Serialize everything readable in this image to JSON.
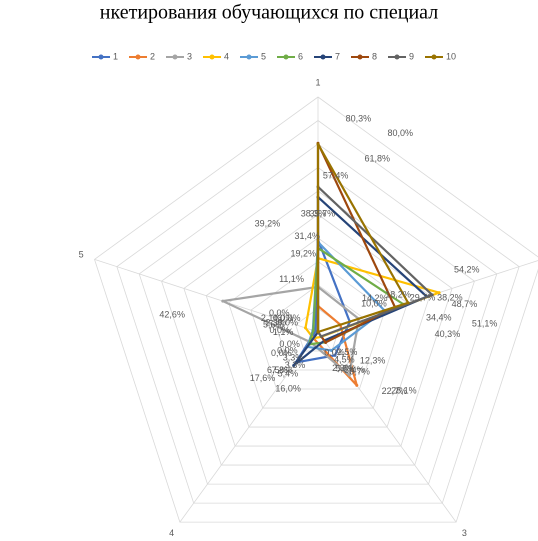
{
  "chart_data": {
    "type": "radar",
    "title": "нкетирования обучающихся по специал",
    "categories": [
      "1",
      null,
      "3",
      "4",
      "5"
    ],
    "rlim": [
      0,
      100
    ],
    "rticks": [
      10,
      20,
      30,
      40,
      50,
      60,
      70,
      80,
      90,
      100
    ],
    "grid": true,
    "legend": "top",
    "series": [
      {
        "name": "1",
        "color": "#4472c4",
        "values": [
          39.2,
          14.2,
          12.3,
          16.0,
          1.1
        ],
        "value_labels": [
          "39,2%",
          "14,2%",
          "12,3%",
          "16,0%",
          "1,1%"
        ]
      },
      {
        "name": "2",
        "color": "#ed7d31",
        "values": [
          11.1,
          10.0,
          28.1,
          3.3,
          0.0
        ],
        "value_labels": [
          "11,1%",
          "10,0%",
          "28,1%",
          "3,3%",
          "0,0%"
        ]
      },
      {
        "name": "3",
        "color": "#a5a5a5",
        "values": [
          19.2,
          18.2,
          22.7,
          5.4,
          42.6
        ],
        "value_labels": [
          "19,2%",
          "18,2%",
          "22,7%",
          "5,4%",
          "42,6%"
        ]
      },
      {
        "name": "4",
        "color": "#ffc000",
        "values": [
          31.4,
          54.2,
          2.5,
          3.3,
          5.6
        ],
        "value_labels": [
          "31,4%",
          "54,2%",
          "2,5%",
          "3,3%",
          "5,6%"
        ]
      },
      {
        "name": "5",
        "color": "#5b9bd5",
        "values": [
          38.3,
          29.7,
          9.7,
          7.8,
          2.3
        ],
        "value_labels": [
          "38,3%",
          "29,7%",
          "9,7%",
          "7,8%",
          "2,3%"
        ]
      },
      {
        "name": "6",
        "color": "#70ad47",
        "values": [
          35.7,
          38.2,
          5.4,
          6.5,
          2.1
        ],
        "value_labels": [
          "35,7%",
          "38,2%",
          "5,4%",
          "6,5%",
          "2,1%"
        ]
      },
      {
        "name": "7",
        "color": "#264478",
        "values": [
          57.4,
          48.7,
          4.5,
          17.6,
          0.0
        ],
        "value_labels": [
          "57,4%",
          "48,7%",
          "4,5%",
          "17,6%",
          "0,0%"
        ]
      },
      {
        "name": "8",
        "color": "#9e480e",
        "values": [
          80.3,
          34.4,
          5.5,
          0.0,
          0.0
        ],
        "value_labels": [
          "80,3%",
          "34,4%",
          "5,5%",
          "0,0%",
          "0,0%"
        ]
      },
      {
        "name": "9",
        "color": "#636363",
        "values": [
          61.8,
          51.1,
          2.3,
          0.0,
          0.0
        ],
        "value_labels": [
          "61,8%",
          "51,1%",
          "2,3%",
          "0,0%",
          "0,0%"
        ]
      },
      {
        "name": "10",
        "color": "#997300",
        "values": [
          80.0,
          40.3,
          0.0,
          0.0,
          0.0
        ],
        "value_labels": [
          "80,0%",
          "40,3%",
          "0,0%",
          "0,0%",
          "0,0%"
        ]
      }
    ]
  }
}
